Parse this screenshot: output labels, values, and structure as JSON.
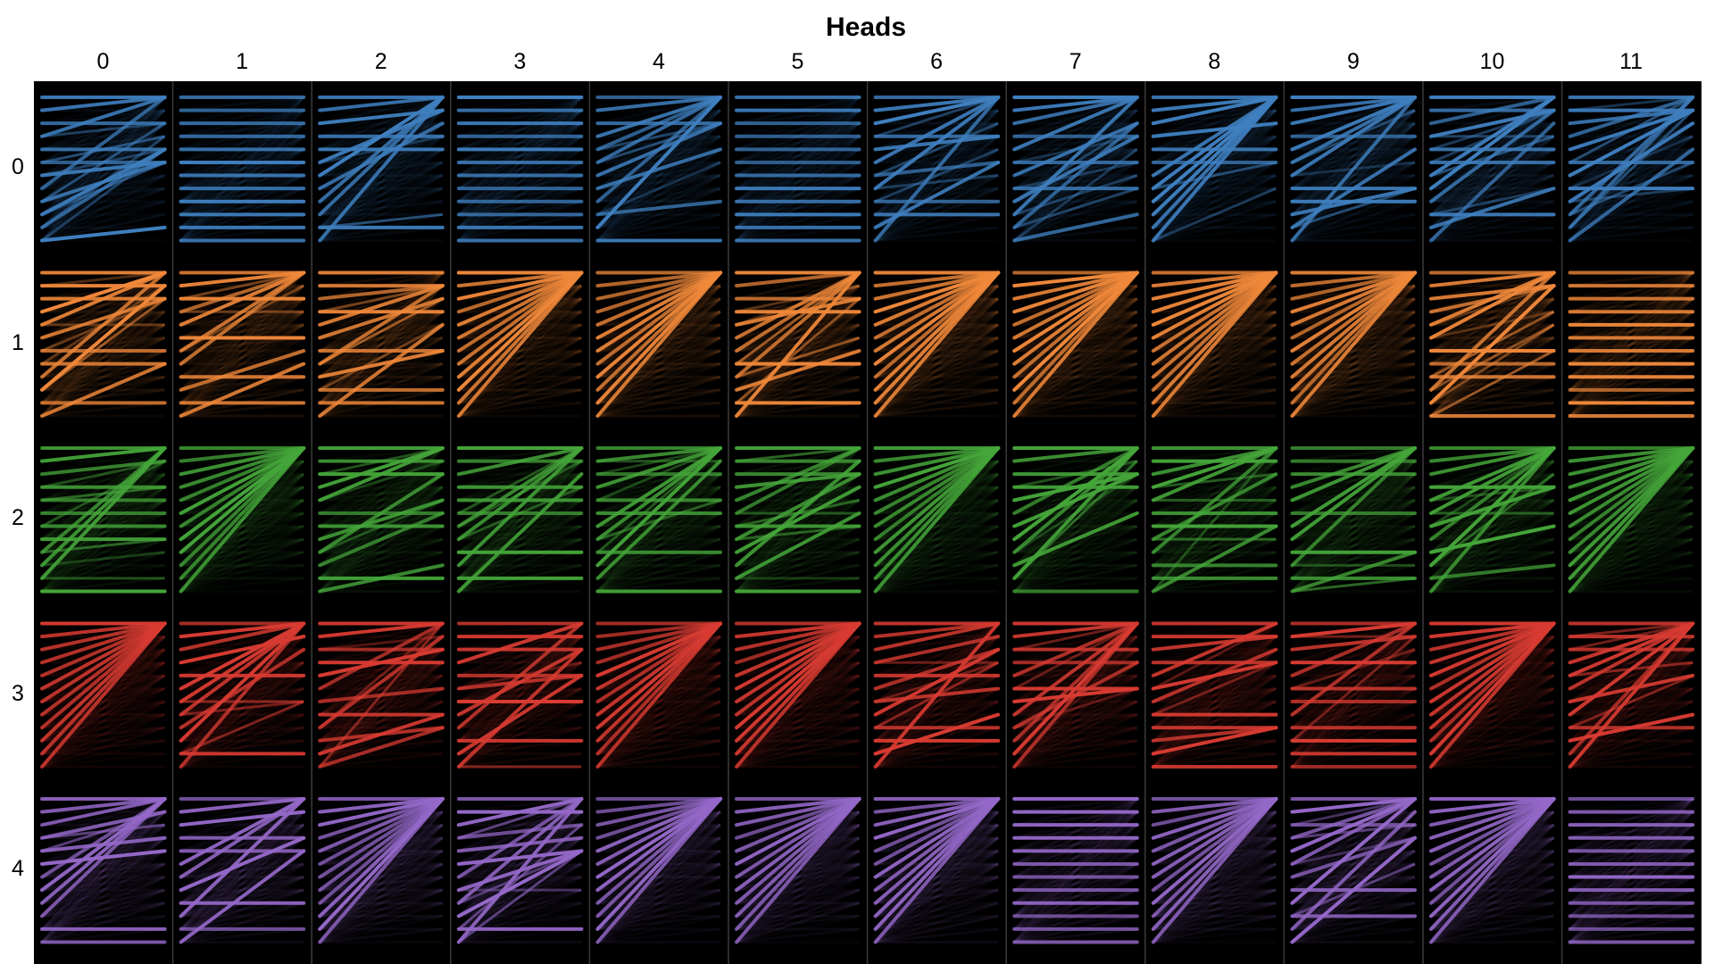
{
  "title": "Heads",
  "heads": [
    "0",
    "1",
    "2",
    "3",
    "4",
    "5",
    "6",
    "7",
    "8",
    "9",
    "10",
    "11"
  ],
  "layers": [
    "0",
    "1",
    "2",
    "3",
    "4"
  ],
  "layer_colors": [
    "#3f7fbf",
    "#f0883a",
    "#45a63a",
    "#d83b32",
    "#9468c8"
  ],
  "tokens_per_panel": 12,
  "patterns": [
    [
      "mixed",
      "diagonal",
      "mixed",
      "diagonal",
      "mixed",
      "diagonal",
      "mixed",
      "mixed",
      "mixed",
      "mixed",
      "mixed",
      "mixed"
    ],
    [
      "mixed",
      "mixed",
      "mixed",
      "first",
      "first",
      "mixed",
      "first",
      "first",
      "first",
      "first",
      "mixed",
      "diagonal"
    ],
    [
      "mixed",
      "first",
      "mixed",
      "mixed",
      "mixed",
      "mixed",
      "first",
      "mixed",
      "mixed",
      "mixed",
      "mixed",
      "first"
    ],
    [
      "first",
      "mixed",
      "mixed",
      "mixed",
      "first",
      "first",
      "mixed",
      "mixed",
      "mixed",
      "mixed",
      "first",
      "mixed"
    ],
    [
      "mixed",
      "mixed",
      "first",
      "mixed",
      "first",
      "first",
      "first",
      "diagonal",
      "first",
      "mixed",
      "first",
      "diagonal"
    ]
  ]
}
